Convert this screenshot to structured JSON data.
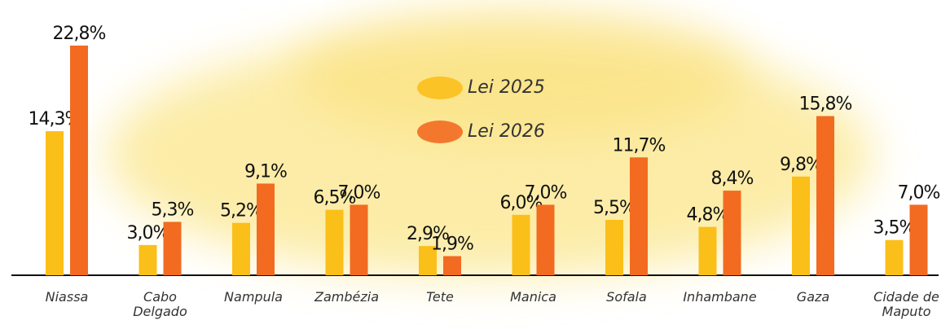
{
  "chart_data": {
    "type": "bar",
    "categories": [
      "Niassa",
      "Cabo Delgado",
      "Nampula",
      "Zambézia",
      "Tete",
      "Manica",
      "Sofala",
      "Inhambane",
      "Gaza",
      "Cidade de Maputo"
    ],
    "series": [
      {
        "name": "Lei 2025",
        "color": "#fbbf1a",
        "values": [
          14.3,
          3.0,
          5.2,
          6.5,
          2.9,
          6.0,
          5.5,
          4.8,
          9.8,
          3.5
        ],
        "value_labels": [
          "14,3%",
          "3,0%",
          "5,2%",
          "6,5%",
          "2,9%",
          "6,0%",
          "5,5%",
          "4,8%",
          "9,8%",
          "3,5%"
        ]
      },
      {
        "name": "Lei 2026",
        "color": "#f26b21",
        "values": [
          22.8,
          5.3,
          9.1,
          7.0,
          1.9,
          7.0,
          11.7,
          8.4,
          15.8,
          7.0
        ],
        "value_labels": [
          "22,8%",
          "5,3%",
          "9,1%",
          "7,0%",
          "1,9%",
          "7,0%",
          "11,7%",
          "8,4%",
          "15,8%",
          "7,0%"
        ]
      }
    ]
  }
}
